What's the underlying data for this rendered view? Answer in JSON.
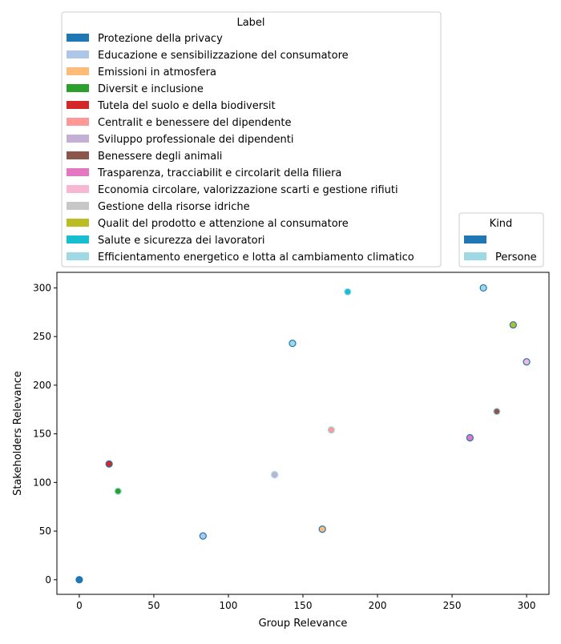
{
  "chart_data": {
    "type": "scatter",
    "title": "",
    "xlabel": "Group Relevance",
    "ylabel": "Stakeholders Relevance",
    "xlim": [
      -15,
      315
    ],
    "ylim": [
      -15,
      316
    ],
    "xticks": [
      0,
      50,
      100,
      150,
      200,
      250,
      300
    ],
    "yticks": [
      0,
      50,
      100,
      150,
      200,
      250,
      300
    ],
    "grid": false,
    "legend_label": {
      "title": "Label",
      "placement": "top-left, above plot",
      "entries": [
        {
          "name": "Protezione della privacy",
          "color": "#1f77b4"
        },
        {
          "name": "Educazione e sensibilizzazione del consumatore",
          "color": "#aec7e8"
        },
        {
          "name": "Emissioni in atmosfera",
          "color": "#ffbb78"
        },
        {
          "name": "Diversit e inclusione",
          "color": "#2ca02c"
        },
        {
          "name": "Tutela del suolo e della biodiversit",
          "color": "#d62728"
        },
        {
          "name": "Centralit e benessere del dipendente",
          "color": "#ff9896"
        },
        {
          "name": "Sviluppo professionale dei dipendenti",
          "color": "#c5b0d5"
        },
        {
          "name": "Benessere degli animali",
          "color": "#8c564b"
        },
        {
          "name": "Trasparenza, tracciabilit e circolarit della filiera",
          "color": "#e377c2"
        },
        {
          "name": "Economia circolare, valorizzazione scarti e gestione rifiuti",
          "color": "#f7b6d2"
        },
        {
          "name": "Gestione della risorse idriche",
          "color": "#c7c7c7"
        },
        {
          "name": "Qualit del prodotto e attenzione al consumatore",
          "color": "#bcbd22"
        },
        {
          "name": "Salute e sicurezza dei lavoratori",
          "color": "#17becf"
        },
        {
          "name": "Efficientamento energetico e lotta al cambiamento climatico",
          "color": "#9edae5"
        }
      ]
    },
    "legend_kind": {
      "title": "Kind",
      "placement": "top-right, above plot",
      "entries": [
        {
          "name": "",
          "color": "#1f77b4"
        },
        {
          "name": "Persone",
          "color": "#9edae5"
        }
      ]
    },
    "points": [
      {
        "x": 0,
        "y": 0,
        "fill": "#1f77b4",
        "edge": "#1f77b4"
      },
      {
        "x": 20,
        "y": 119,
        "fill": "#d62728",
        "edge": "#1f77b4"
      },
      {
        "x": 26,
        "y": 91,
        "fill": "#2ca02c",
        "edge": "#9edae5"
      },
      {
        "x": 83,
        "y": 45,
        "fill": "#aec7e8",
        "edge": "#1f77b4"
      },
      {
        "x": 131,
        "y": 108,
        "fill": "#c5b0d5",
        "edge": "#9edae5"
      },
      {
        "x": 143,
        "y": 243,
        "fill": "#9edae5",
        "edge": "#1f77b4"
      },
      {
        "x": 163,
        "y": 52,
        "fill": "#ffbb78",
        "edge": "#1f77b4"
      },
      {
        "x": 169,
        "y": 154,
        "fill": "#ff9896",
        "edge": "#9edae5"
      },
      {
        "x": 180,
        "y": 296,
        "fill": "#17becf",
        "edge": "#9edae5"
      },
      {
        "x": 262,
        "y": 146,
        "fill": "#e377c2",
        "edge": "#1f77b4"
      },
      {
        "x": 271,
        "y": 300,
        "fill": "#9edae5",
        "edge": "#1f77b4"
      },
      {
        "x": 280,
        "y": 173,
        "fill": "#8c564b",
        "edge": "#9edae5"
      },
      {
        "x": 291,
        "y": 262,
        "fill": "#bcbd22",
        "edge": "#1f77b4"
      },
      {
        "x": 300,
        "y": 224,
        "fill": "#f7b6d2",
        "edge": "#1f77b4"
      }
    ]
  }
}
